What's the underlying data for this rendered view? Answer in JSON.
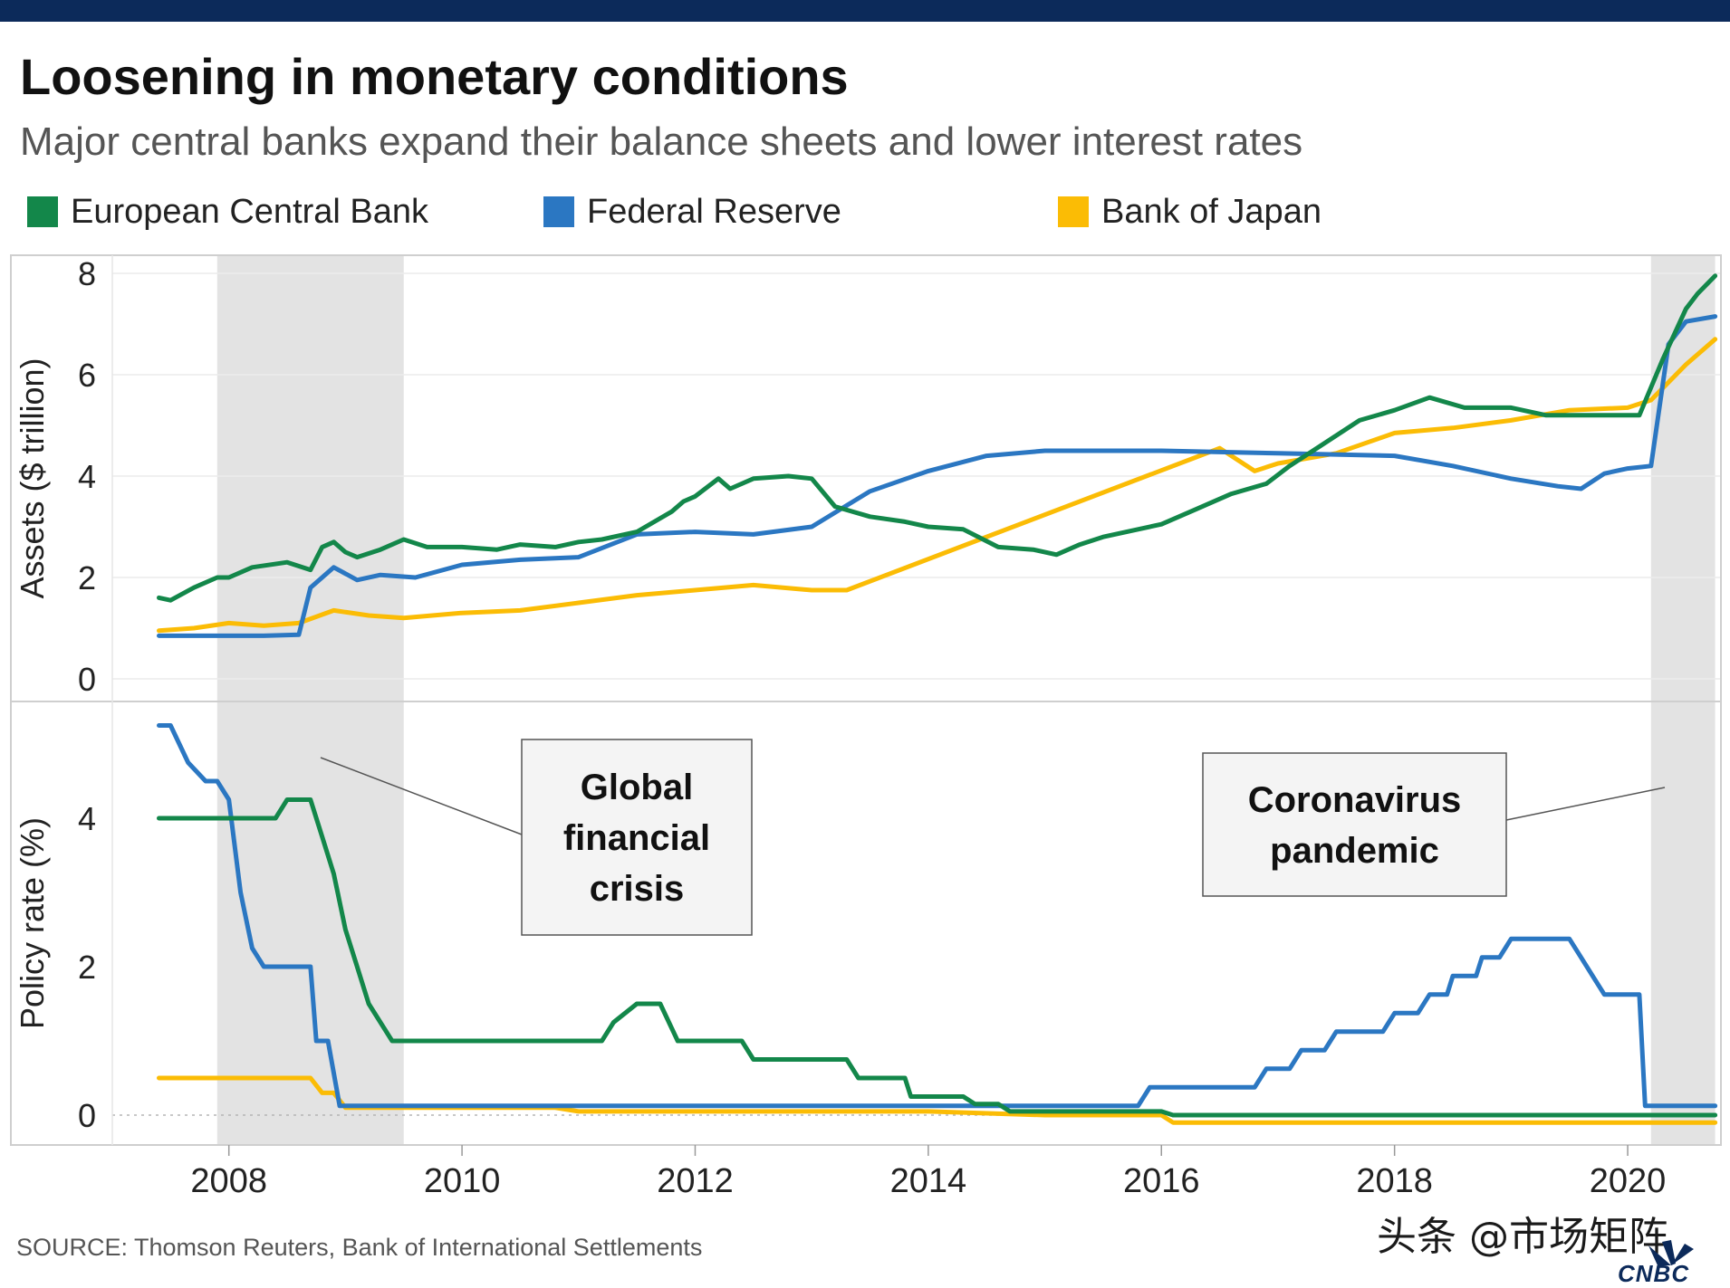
{
  "header": {
    "title": "Loosening in monetary conditions",
    "subtitle": "Major central banks expand their balance sheets and lower interest rates"
  },
  "legend": [
    {
      "label": "European Central Bank",
      "color": "#13874a"
    },
    {
      "label": "Federal Reserve",
      "color": "#2b77c2"
    },
    {
      "label": "Bank of Japan",
      "color": "#fbbc05"
    }
  ],
  "footer": {
    "source": "SOURCE: Thomson Reuters, Bank of International Settlements",
    "watermark": "头条 @市场矩阵",
    "logo": "CNBC"
  },
  "chart_data": [
    {
      "type": "line",
      "panel": "top",
      "ylabel": "Assets ($ trillion)",
      "ylim": [
        0,
        8
      ],
      "yticks": [
        0,
        2,
        4,
        6,
        8
      ],
      "xlim": [
        2007.0,
        2020.8
      ],
      "series": [
        {
          "name": "European Central Bank",
          "color": "#13874a",
          "x": [
            2007.4,
            2007.5,
            2007.7,
            2007.9,
            2008.0,
            2008.2,
            2008.5,
            2008.7,
            2008.8,
            2008.9,
            2009.0,
            2009.1,
            2009.3,
            2009.5,
            2009.7,
            2010.0,
            2010.3,
            2010.5,
            2010.8,
            2011.0,
            2011.2,
            2011.5,
            2011.8,
            2011.9,
            2012.0,
            2012.2,
            2012.3,
            2012.5,
            2012.8,
            2013.0,
            2013.2,
            2013.5,
            2013.8,
            2014.0,
            2014.3,
            2014.6,
            2014.9,
            2015.1,
            2015.3,
            2015.5,
            2015.8,
            2016.0,
            2016.3,
            2016.6,
            2016.9,
            2017.1,
            2017.4,
            2017.7,
            2018.0,
            2018.3,
            2018.6,
            2019.0,
            2019.3,
            2019.6,
            2019.9,
            2020.1,
            2020.3,
            2020.5,
            2020.6,
            2020.75
          ],
          "values": [
            1.6,
            1.55,
            1.8,
            2.0,
            2.0,
            2.2,
            2.3,
            2.15,
            2.6,
            2.7,
            2.5,
            2.4,
            2.55,
            2.75,
            2.6,
            2.6,
            2.55,
            2.65,
            2.6,
            2.7,
            2.75,
            2.9,
            3.3,
            3.5,
            3.6,
            3.95,
            3.75,
            3.95,
            4.0,
            3.95,
            3.4,
            3.2,
            3.1,
            3.0,
            2.95,
            2.6,
            2.55,
            2.45,
            2.65,
            2.8,
            2.95,
            3.05,
            3.35,
            3.65,
            3.85,
            4.2,
            4.65,
            5.1,
            5.3,
            5.55,
            5.35,
            5.35,
            5.2,
            5.2,
            5.2,
            5.2,
            6.3,
            7.3,
            7.6,
            7.95
          ]
        },
        {
          "name": "Federal Reserve",
          "color": "#2b77c2",
          "x": [
            2007.4,
            2007.9,
            2008.3,
            2008.6,
            2008.7,
            2008.9,
            2009.1,
            2009.3,
            2009.6,
            2010.0,
            2010.5,
            2011.0,
            2011.5,
            2012.0,
            2012.5,
            2013.0,
            2013.5,
            2014.0,
            2014.5,
            2015.0,
            2016.0,
            2017.0,
            2018.0,
            2018.5,
            2019.0,
            2019.4,
            2019.6,
            2019.8,
            2020.0,
            2020.2,
            2020.35,
            2020.5,
            2020.75
          ],
          "values": [
            0.85,
            0.85,
            0.85,
            0.87,
            1.8,
            2.2,
            1.95,
            2.05,
            2.0,
            2.25,
            2.35,
            2.4,
            2.85,
            2.9,
            2.85,
            3.0,
            3.7,
            4.1,
            4.4,
            4.5,
            4.5,
            4.45,
            4.4,
            4.2,
            3.95,
            3.8,
            3.75,
            4.05,
            4.15,
            4.2,
            6.6,
            7.05,
            7.15
          ]
        },
        {
          "name": "Bank of Japan",
          "color": "#fbbc05",
          "x": [
            2007.4,
            2007.7,
            2008.0,
            2008.3,
            2008.6,
            2008.9,
            2009.2,
            2009.5,
            2010.0,
            2010.5,
            2011.0,
            2011.5,
            2012.0,
            2012.5,
            2013.0,
            2013.3,
            2016.5,
            2016.8,
            2017.0,
            2017.5,
            2018.0,
            2018.5,
            2019.0,
            2019.5,
            2020.0,
            2020.2,
            2020.5,
            2020.75
          ],
          "values": [
            0.95,
            1.0,
            1.1,
            1.05,
            1.1,
            1.35,
            1.25,
            1.2,
            1.3,
            1.35,
            1.5,
            1.65,
            1.75,
            1.85,
            1.75,
            1.75,
            4.55,
            4.1,
            4.25,
            4.45,
            4.85,
            4.95,
            5.1,
            5.3,
            5.35,
            5.5,
            6.2,
            6.7
          ]
        }
      ]
    },
    {
      "type": "line",
      "panel": "bottom",
      "ylabel": "Policy rate (%)",
      "ylim": [
        -0.4,
        5.6
      ],
      "yticks": [
        0,
        2,
        4
      ],
      "xlim": [
        2007.0,
        2020.8
      ],
      "xticks": [
        2008,
        2010,
        2012,
        2014,
        2016,
        2018,
        2020
      ],
      "series": [
        {
          "name": "European Central Bank",
          "color": "#13874a",
          "x": [
            2007.4,
            2008.4,
            2008.5,
            2008.7,
            2008.8,
            2008.9,
            2009.0,
            2009.1,
            2009.2,
            2009.4,
            2011.2,
            2011.3,
            2011.5,
            2011.7,
            2011.85,
            2012.4,
            2012.5,
            2013.3,
            2013.4,
            2013.8,
            2013.85,
            2014.3,
            2014.4,
            2014.6,
            2014.7,
            2016.0,
            2016.1,
            2016.2,
            2020.75
          ],
          "values": [
            4.0,
            4.0,
            4.25,
            4.25,
            3.75,
            3.25,
            2.5,
            2.0,
            1.5,
            1.0,
            1.0,
            1.25,
            1.5,
            1.5,
            1.0,
            1.0,
            0.75,
            0.75,
            0.5,
            0.5,
            0.25,
            0.25,
            0.15,
            0.15,
            0.05,
            0.05,
            0.0,
            0.0,
            0.0
          ]
        },
        {
          "name": "Federal Reserve",
          "color": "#2b77c2",
          "x": [
            2007.4,
            2007.5,
            2007.65,
            2007.8,
            2007.9,
            2008.0,
            2008.1,
            2008.2,
            2008.3,
            2008.7,
            2008.75,
            2008.85,
            2008.95,
            2015.8,
            2015.9,
            2016.8,
            2016.9,
            2017.1,
            2017.2,
            2017.4,
            2017.5,
            2017.9,
            2018.0,
            2018.2,
            2018.3,
            2018.45,
            2018.5,
            2018.7,
            2018.75,
            2018.9,
            2019.0,
            2019.5,
            2019.6,
            2019.7,
            2019.8,
            2020.1,
            2020.15,
            2020.2,
            2020.75
          ],
          "values": [
            5.25,
            5.25,
            4.75,
            4.5,
            4.5,
            4.25,
            3.0,
            2.25,
            2.0,
            2.0,
            1.0,
            1.0,
            0.125,
            0.125,
            0.375,
            0.375,
            0.625,
            0.625,
            0.875,
            0.875,
            1.125,
            1.125,
            1.375,
            1.375,
            1.625,
            1.625,
            1.875,
            1.875,
            2.125,
            2.125,
            2.375,
            2.375,
            2.125,
            1.875,
            1.625,
            1.625,
            0.125,
            0.125,
            0.125
          ]
        },
        {
          "name": "Bank of Japan",
          "color": "#fbbc05",
          "x": [
            2007.4,
            2008.7,
            2008.8,
            2008.9,
            2009.0,
            2010.8,
            2011.0,
            2014.0,
            2015.0,
            2016.0,
            2016.1,
            2020.75
          ],
          "values": [
            0.5,
            0.5,
            0.3,
            0.3,
            0.1,
            0.1,
            0.05,
            0.05,
            0.0,
            0.0,
            -0.1,
            -0.1
          ]
        }
      ]
    }
  ],
  "shading": [
    {
      "label": "Global financial crisis",
      "lines": [
        "Global",
        "financial",
        "crisis"
      ],
      "from": 2007.9,
      "to": 2009.5
    },
    {
      "label": "Coronavirus pandemic",
      "lines": [
        "Coronavirus",
        "pandemic"
      ],
      "from": 2020.2,
      "to": 2020.75
    }
  ]
}
